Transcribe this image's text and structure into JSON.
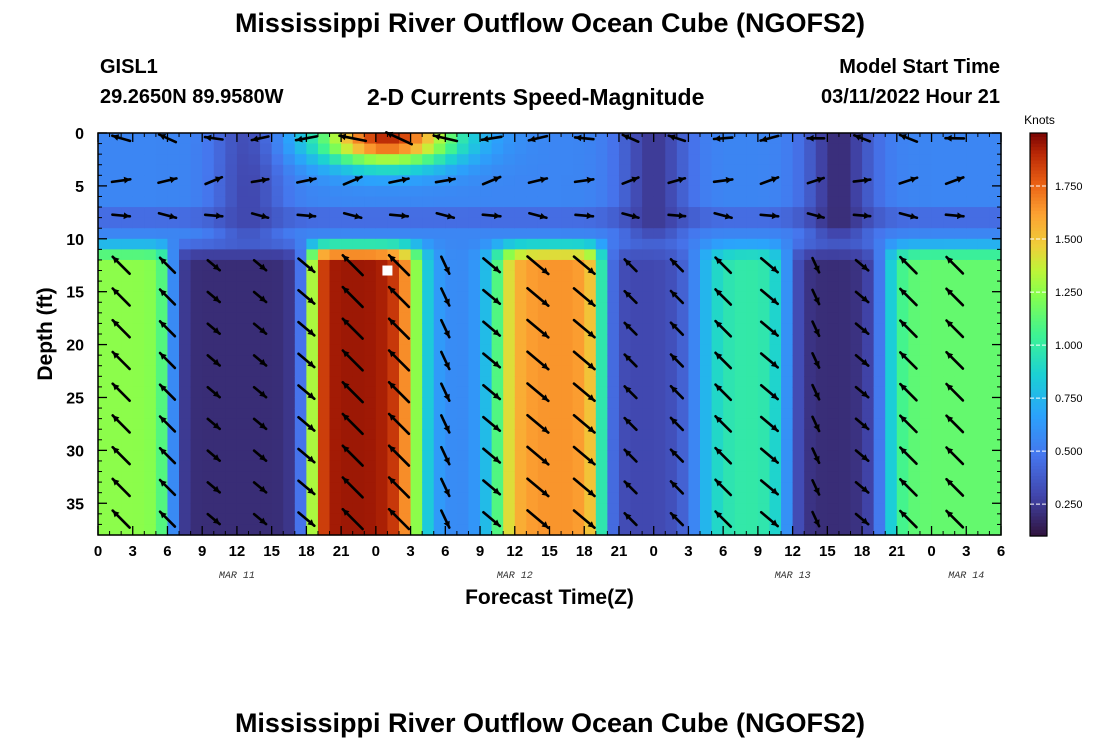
{
  "title": "Mississippi River Outflow Ocean Cube (NGOFS2)",
  "station": {
    "id": "GISL1",
    "coords": "29.2650N  89.9580W"
  },
  "subtitle": "2-D Currents Speed-Magnitude",
  "model_start": {
    "label": "Model Start Time",
    "value": "03/11/2022 Hour 21"
  },
  "bottom_title": "Mississippi River Outflow Ocean Cube (NGOFS2)",
  "chart_data": {
    "type": "heatmap",
    "xlabel": "Forecast Time(Z)",
    "ylabel": "Depth (ft)",
    "x_tick_labels": [
      "0",
      "3",
      "6",
      "9",
      "12",
      "15",
      "18",
      "21",
      "0",
      "3",
      "6",
      "9",
      "12",
      "15",
      "18",
      "21",
      "0",
      "3",
      "6",
      "9",
      "12",
      "15",
      "18",
      "21",
      "0",
      "3",
      "6"
    ],
    "date_labels": [
      {
        "label": "MAR 11",
        "hour": 12
      },
      {
        "label": "MAR 12",
        "hour": 36
      },
      {
        "label": "MAR 13",
        "hour": 60
      },
      {
        "label": "MAR 14",
        "hour": 75
      }
    ],
    "xlim_hours": [
      0,
      78
    ],
    "y_ticks": [
      0,
      5,
      10,
      15,
      20,
      25,
      30,
      35
    ],
    "ylim_ft": [
      0,
      38
    ],
    "y_inverted": true,
    "colorbar": {
      "label": "Knots",
      "ticks": [
        "0.250",
        "0.500",
        "0.750",
        "1.000",
        "1.250",
        "1.500",
        "1.750"
      ],
      "range": [
        0.1,
        2.0
      ],
      "colormap": "turbo"
    },
    "marker": {
      "hour": 25,
      "depth_ft": 13,
      "color": "#ffffff"
    },
    "surface_layer": {
      "depth_ft": [
        0,
        10
      ],
      "high_speed_centers": [
        {
          "hour": 25,
          "depth_ft": 0.5,
          "speed": 1.9
        }
      ],
      "low_speed_centers": [
        {
          "hour": 13,
          "speed": 0.3
        },
        {
          "hour": 48,
          "speed": 0.25
        },
        {
          "hour": 64,
          "speed": 0.2
        }
      ]
    },
    "lower_layer_columns": [
      {
        "hour": 0,
        "peak_speed": 1.25
      },
      {
        "hour": 12.5,
        "peak_speed": 0.2
      },
      {
        "hour": 24,
        "peak_speed": 1.95
      },
      {
        "hour": 31,
        "peak_speed": 0.55
      },
      {
        "hour": 38,
        "peak_speed": 1.65
      },
      {
        "hour": 49,
        "peak_speed": 0.3
      },
      {
        "hour": 55,
        "peak_speed": 1.0
      },
      {
        "hour": 64,
        "peak_speed": 0.2
      },
      {
        "hour": 72,
        "peak_speed": 1.15
      }
    ]
  }
}
